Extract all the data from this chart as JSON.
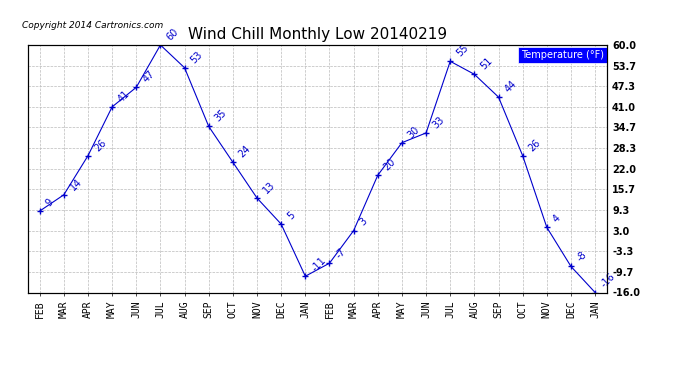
{
  "title": "Wind Chill Monthly Low 20140219",
  "copyright": "Copyright 2014 Cartronics.com",
  "legend_label": "Temperature (°F)",
  "months": [
    "FEB",
    "MAR",
    "APR",
    "MAY",
    "JUN",
    "JUL",
    "AUG",
    "SEP",
    "OCT",
    "NOV",
    "DEC",
    "JAN",
    "FEB",
    "MAR",
    "APR",
    "MAY",
    "JUN",
    "JUL",
    "AUG",
    "SEP",
    "OCT",
    "NOV",
    "DEC",
    "JAN"
  ],
  "values": [
    9,
    14,
    26,
    41,
    47,
    60,
    53,
    35,
    24,
    13,
    5,
    -11,
    -7,
    3,
    20,
    30,
    33,
    55,
    51,
    44,
    26,
    4,
    -8,
    -16
  ],
  "yticks": [
    60.0,
    53.7,
    47.3,
    41.0,
    34.7,
    28.3,
    22.0,
    15.7,
    9.3,
    3.0,
    -3.3,
    -9.7,
    -16.0
  ],
  "ytick_labels": [
    "60.0",
    "53.7",
    "47.3",
    "41.0",
    "34.7",
    "28.3",
    "22.0",
    "15.7",
    "9.3",
    "3.0",
    "-3.3",
    "-9.7",
    "-16.0"
  ],
  "line_color": "#0000cc",
  "bg_color": "#ffffff",
  "grid_color": "#bbbbbb",
  "title_fontsize": 11,
  "tick_fontsize": 7,
  "annotation_fontsize": 7,
  "copyright_fontsize": 6.5,
  "legend_fontsize": 7
}
